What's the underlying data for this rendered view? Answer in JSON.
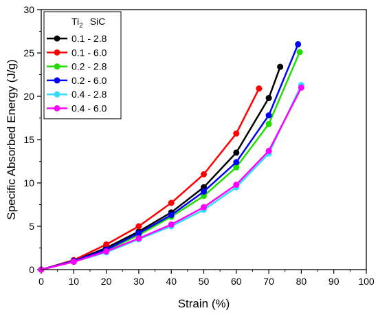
{
  "chart_data": {
    "type": "line",
    "xlabel": "Strain (%)",
    "ylabel": "Specific Absorbed Energy (J/g)",
    "xlim": [
      0,
      100
    ],
    "ylim": [
      0,
      30
    ],
    "xticks": [
      "0",
      "10",
      "20",
      "30",
      "40",
      "50",
      "60",
      "70",
      "80",
      "90",
      "100"
    ],
    "yticks": [
      "0",
      "5",
      "10",
      "15",
      "20",
      "25",
      "30"
    ],
    "grid": false,
    "legend": {
      "placement": "top-left",
      "title_main": "Ti",
      "title_sub": "2",
      "title_rest": "SiC"
    },
    "series": [
      {
        "name": "0.1 - 2.8",
        "color": "#000000",
        "x": [
          0,
          10,
          20,
          30,
          40,
          50,
          60,
          70,
          73.5
        ],
        "y": [
          0,
          1.0,
          2.5,
          4.4,
          6.6,
          9.5,
          13.5,
          19.8,
          23.4
        ]
      },
      {
        "name": "0.1 - 6.0",
        "color": "#ff0000",
        "x": [
          0,
          10,
          20,
          30,
          40,
          50,
          60,
          67
        ],
        "y": [
          0,
          1.1,
          2.9,
          5.0,
          7.7,
          11.0,
          15.7,
          20.9
        ]
      },
      {
        "name": "0.2 - 2.8",
        "color": "#22dd00",
        "x": [
          0,
          10,
          20,
          30,
          40,
          50,
          60,
          70,
          79.5
        ],
        "y": [
          0,
          1.0,
          2.2,
          4.0,
          6.1,
          8.5,
          11.8,
          16.8,
          25.1
        ]
      },
      {
        "name": "0.2 - 6.0",
        "color": "#0000ff",
        "x": [
          0,
          10,
          20,
          30,
          40,
          50,
          60,
          70,
          79
        ],
        "y": [
          0,
          1.0,
          2.3,
          4.2,
          6.3,
          9.0,
          12.4,
          17.8,
          26.0
        ]
      },
      {
        "name": "0.4 - 2.8",
        "color": "#33ddff",
        "x": [
          0,
          10,
          20,
          30,
          40,
          50,
          60,
          70,
          80
        ],
        "y": [
          0,
          0.9,
          2.0,
          3.5,
          5.0,
          6.9,
          9.5,
          13.4,
          21.3
        ]
      },
      {
        "name": "0.4 - 6.0",
        "color": "#ff00ff",
        "x": [
          0,
          10,
          20,
          30,
          40,
          50,
          60,
          70,
          80
        ],
        "y": [
          0,
          0.9,
          2.1,
          3.6,
          5.2,
          7.2,
          9.8,
          13.7,
          21.0
        ]
      }
    ]
  }
}
